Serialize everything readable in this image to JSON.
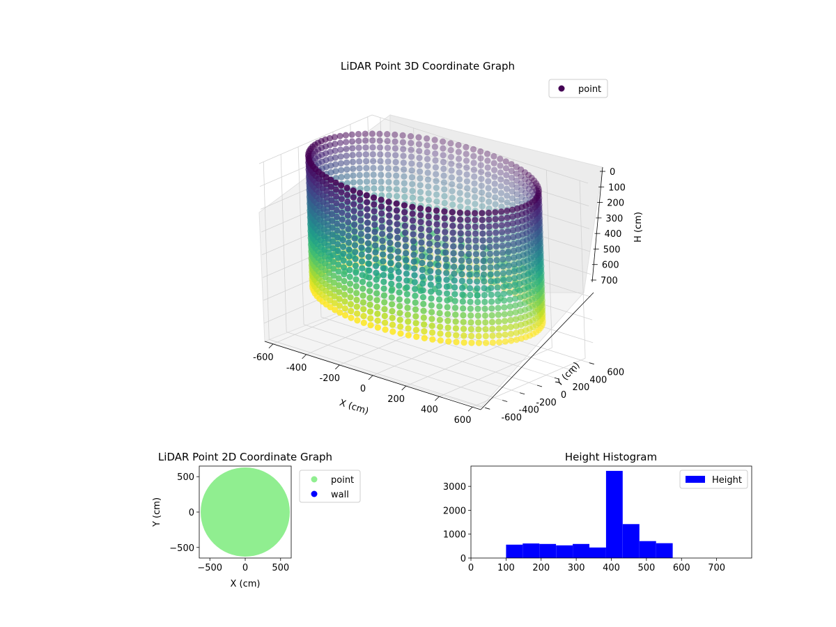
{
  "chart_data": [
    {
      "type": "scatter3d",
      "title": "LiDAR Point 3D Coordinate Graph",
      "xlabel": "X (cm)",
      "ylabel": "Y (cm)",
      "zlabel": "H (cm)",
      "xlim": [
        -650,
        650
      ],
      "ylim": [
        -650,
        650
      ],
      "zlim": [
        780,
        0
      ],
      "x_ticks": [
        -600,
        -400,
        -200,
        0,
        200,
        400,
        600
      ],
      "y_ticks": [
        -600,
        -400,
        -200,
        0,
        200,
        400,
        600
      ],
      "z_ticks": [
        0,
        100,
        200,
        300,
        400,
        500,
        600,
        700
      ],
      "legend": {
        "entries": [
          "point"
        ],
        "placement": "upper-right"
      },
      "colormap": "viridis",
      "grid": true,
      "series": [
        {
          "name": "point",
          "shape": "cylinder",
          "radius": 615,
          "h_range": [
            0,
            570
          ],
          "floor_h": [
            380,
            400
          ]
        }
      ]
    },
    {
      "type": "scatter",
      "title": "LiDAR Point 2D Coordinate Graph",
      "xlabel": "X (cm)",
      "ylabel": "Y (cm)",
      "xlim": [
        -650,
        650
      ],
      "ylim": [
        -650,
        650
      ],
      "x_ticks": [
        -500,
        0,
        500
      ],
      "y_ticks": [
        -500,
        0,
        500
      ],
      "legend": {
        "entries": [
          "point",
          "wall"
        ],
        "placement": "outside-right"
      },
      "series": [
        {
          "name": "point",
          "color": "#90ee90",
          "shape": "disc",
          "radius": 630
        },
        {
          "name": "wall",
          "color": "#0000ff",
          "points": []
        }
      ]
    },
    {
      "type": "histogram",
      "title": "Height Histogram",
      "xlim": [
        0,
        800
      ],
      "ylim": [
        0,
        3850
      ],
      "x_ticks": [
        0,
        100,
        200,
        300,
        400,
        500,
        600,
        700
      ],
      "y_ticks": [
        0,
        1000,
        2000,
        3000
      ],
      "legend": {
        "entries": [
          "Height"
        ],
        "placement": "upper-right"
      },
      "series": [
        {
          "name": "Height",
          "color": "#0000ff",
          "bin_edges": [
            100,
            147.5,
            195,
            242.5,
            290,
            337.5,
            385,
            432.5,
            480,
            527.5,
            575
          ],
          "counts": [
            560,
            610,
            590,
            530,
            590,
            440,
            3650,
            1420,
            710,
            620
          ]
        }
      ]
    }
  ]
}
